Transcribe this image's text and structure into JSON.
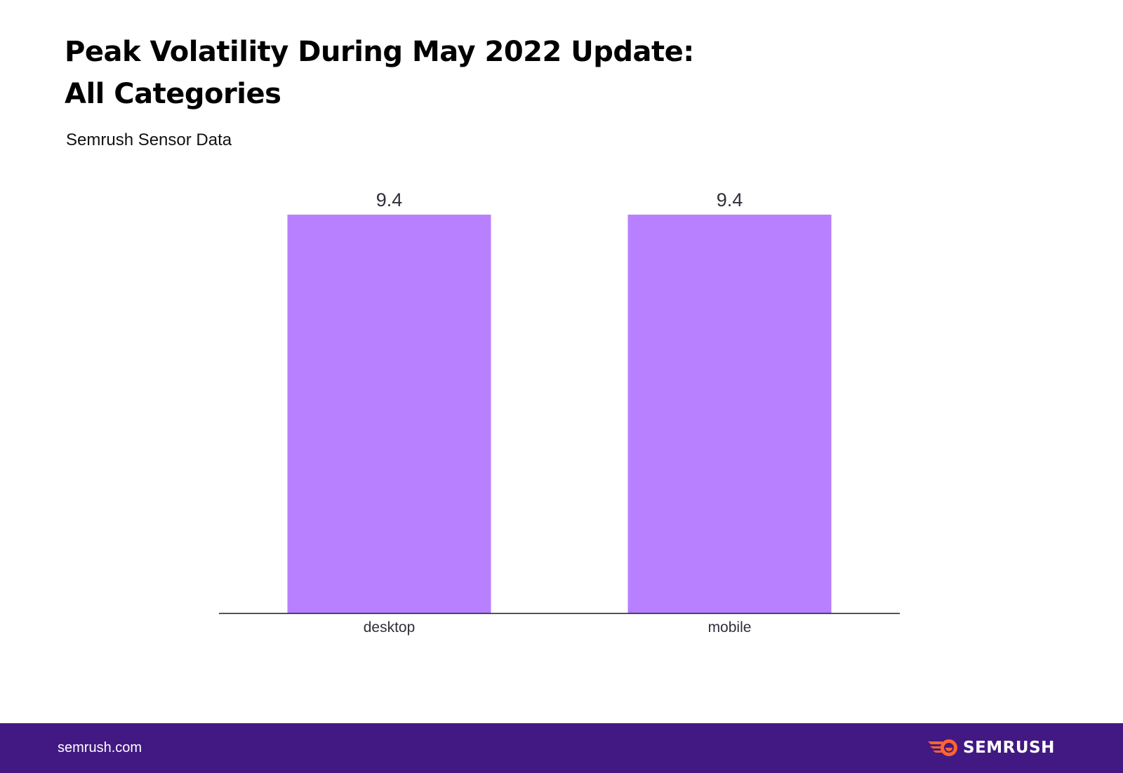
{
  "header": {
    "title_line1": "Peak Volatility During May 2022 Update:",
    "title_line2": "All Categories",
    "subtitle": "Semrush Sensor Data"
  },
  "chart_data": {
    "type": "bar",
    "title": "Peak Volatility During May 2022 Update: All Categories",
    "subtitle": "Semrush Sensor Data",
    "categories": [
      "desktop",
      "mobile"
    ],
    "values": [
      9.4,
      9.4
    ],
    "value_labels": [
      "9.4",
      "9.4"
    ],
    "xlabel": "",
    "ylabel": "",
    "ylim": [
      0,
      9.4
    ],
    "grid": false,
    "bar_color": "#b880fe",
    "axis_color": "#1a1a1a",
    "label_color": "#2f2f3a"
  },
  "footer": {
    "url": "semrush.com",
    "brand": "SEMRUSH",
    "background_color": "#421983",
    "brand_icon": "semrush-fire-icon",
    "brand_icon_color": "#ff642d"
  }
}
